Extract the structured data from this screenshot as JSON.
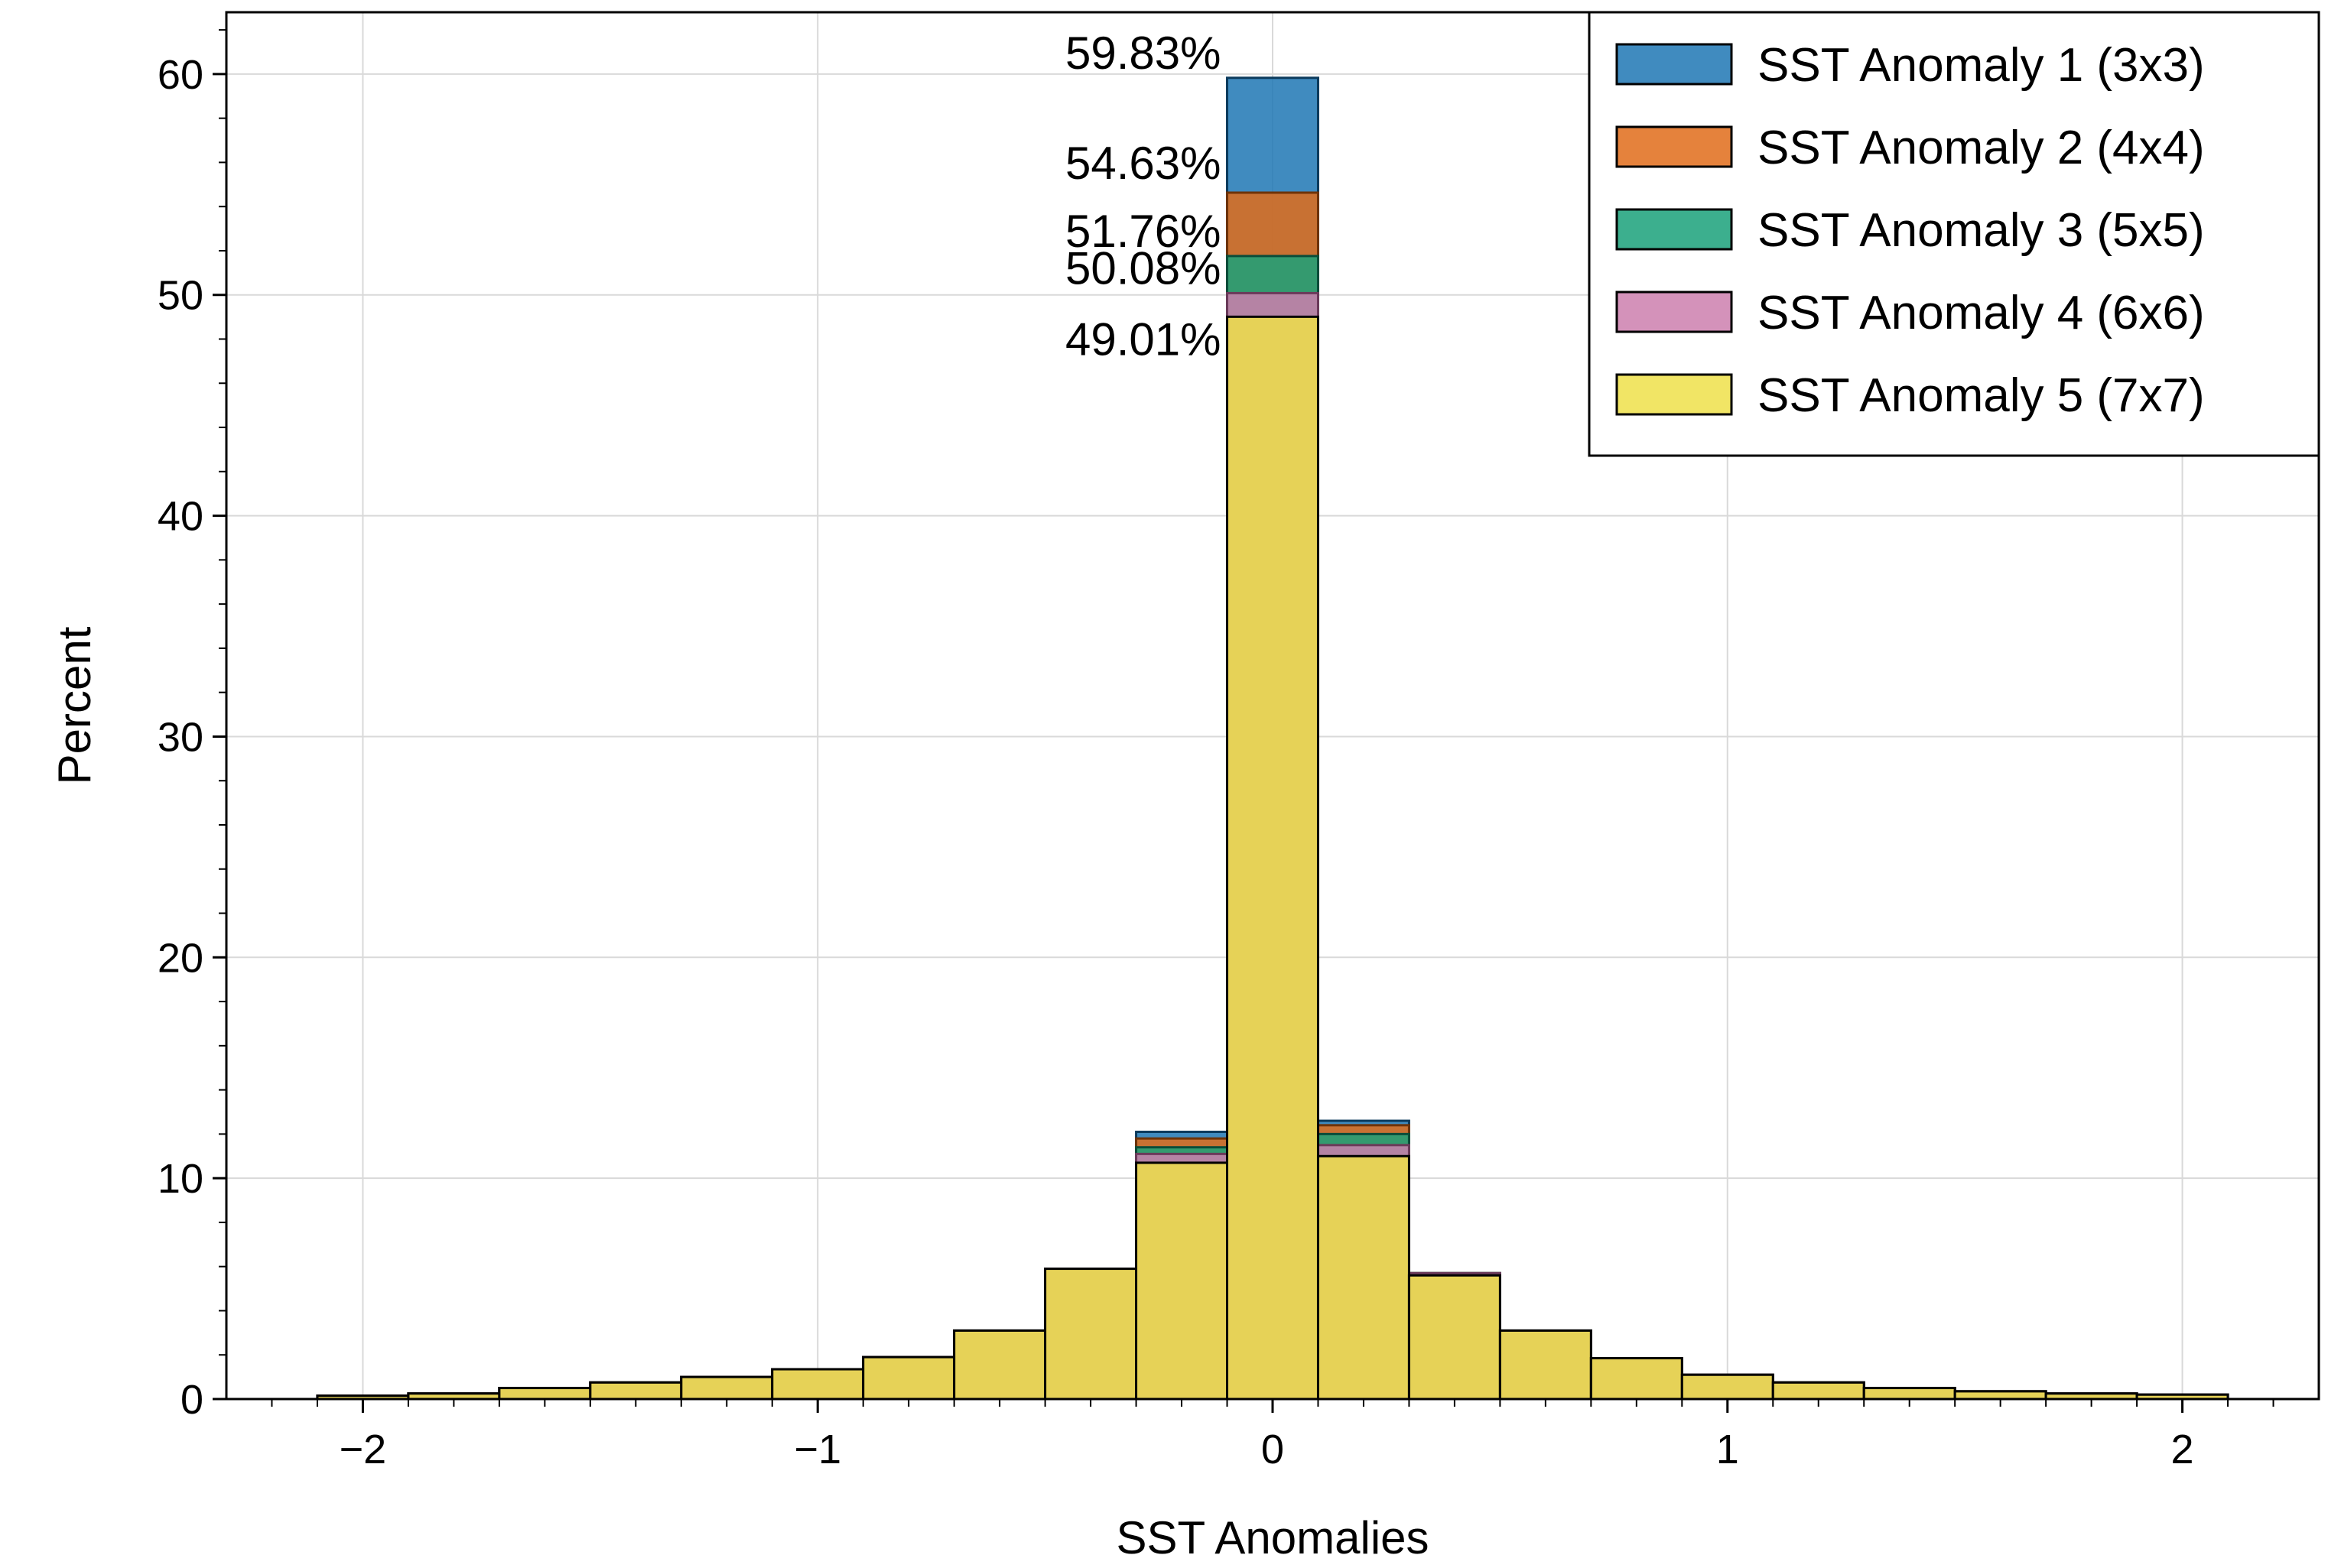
{
  "chart_data": {
    "type": "bar",
    "subtype": "overlaid-histogram",
    "title": "",
    "xlabel": "SST Anomalies",
    "ylabel": "Percent",
    "xlim": [
      -2.3,
      2.3
    ],
    "ylim": [
      0,
      62.8
    ],
    "xticks": [
      -2,
      -1,
      0,
      1,
      2
    ],
    "xtick_labels": [
      "−2",
      "−1",
      "0",
      "1",
      "2"
    ],
    "yticks": [
      0,
      10,
      20,
      30,
      40,
      50,
      60
    ],
    "ytick_labels": [
      "0",
      "10",
      "20",
      "30",
      "40",
      "50",
      "60"
    ],
    "grid": true,
    "legend_position": "top-right",
    "bin_edges": [
      -2.1,
      -1.9,
      -1.7,
      -1.5,
      -1.3,
      -1.1,
      -0.9,
      -0.7,
      -0.5,
      -0.3,
      -0.1,
      0.1,
      0.3,
      0.5,
      0.7,
      0.9,
      1.1,
      1.3,
      1.5,
      1.7,
      1.9,
      2.1
    ],
    "series": [
      {
        "name": "SST Anomaly 1 (3x3)",
        "color": "#1f77b4",
        "edge": "#0b3a5c",
        "values": [
          0.15,
          0.25,
          0.5,
          0.75,
          1.0,
          1.35,
          1.9,
          3.1,
          5.9,
          12.1,
          59.83,
          12.6,
          5.7,
          3.1,
          1.85,
          1.1,
          0.75,
          0.5,
          0.35,
          0.25,
          0.2
        ]
      },
      {
        "name": "SST Anomaly 2 (4x4)",
        "color": "#e06c1a",
        "edge": "#6e3308",
        "values": [
          0.15,
          0.25,
          0.5,
          0.75,
          1.0,
          1.35,
          1.9,
          3.1,
          5.9,
          11.8,
          54.63,
          12.4,
          5.7,
          3.1,
          1.85,
          1.1,
          0.75,
          0.5,
          0.35,
          0.25,
          0.2
        ]
      },
      {
        "name": "SST Anomaly 3 (5x5)",
        "color": "#1aa17a",
        "edge": "#0a4d3a",
        "values": [
          0.15,
          0.25,
          0.5,
          0.75,
          1.0,
          1.35,
          1.9,
          3.1,
          5.9,
          11.4,
          51.76,
          12.0,
          5.7,
          3.1,
          1.85,
          1.1,
          0.75,
          0.5,
          0.35,
          0.25,
          0.2
        ]
      },
      {
        "name": "SST Anomaly 4 (6x6)",
        "color": "#cc7fae",
        "edge": "#6b3a5a",
        "values": [
          0.15,
          0.25,
          0.5,
          0.75,
          1.0,
          1.35,
          1.9,
          3.1,
          5.9,
          11.1,
          50.08,
          11.5,
          5.7,
          3.1,
          1.85,
          1.1,
          0.75,
          0.5,
          0.35,
          0.25,
          0.2
        ]
      },
      {
        "name": "SST Anomaly 5 (7x7)",
        "color": "#efe04a",
        "edge": "#000000",
        "values": [
          0.15,
          0.25,
          0.5,
          0.75,
          1.0,
          1.35,
          1.9,
          3.1,
          5.9,
          10.7,
          49.01,
          11.0,
          5.6,
          3.1,
          1.85,
          1.1,
          0.75,
          0.5,
          0.35,
          0.25,
          0.2
        ]
      }
    ],
    "annotations": [
      "59.83%",
      "54.63%",
      "51.76%",
      "50.08%",
      "49.01%"
    ]
  }
}
